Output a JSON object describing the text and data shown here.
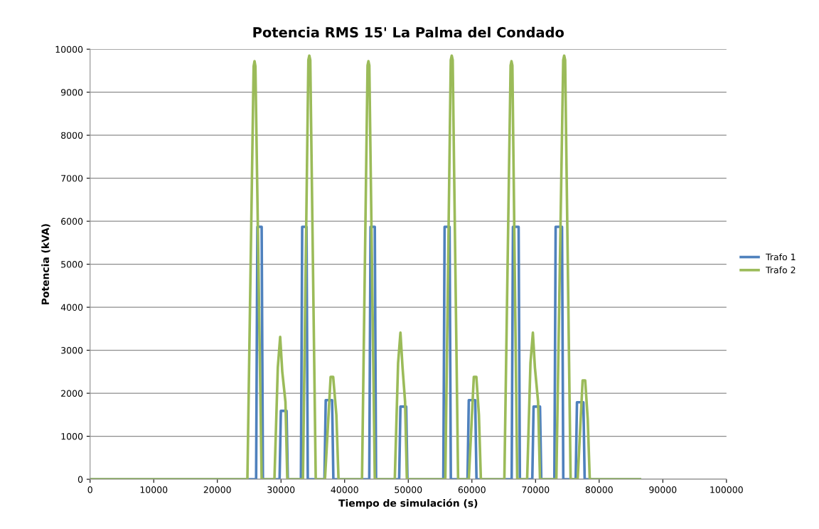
{
  "chart_data": {
    "type": "line",
    "title": "Potencia RMS 15' La Palma del Condado",
    "xlabel": "Tiempo de simulación (s)",
    "ylabel": "Potencia (kVA)",
    "xlim": [
      0,
      100000
    ],
    "xticks": [
      0,
      10000,
      20000,
      30000,
      40000,
      50000,
      60000,
      70000,
      80000,
      90000,
      100000
    ],
    "ylim": [
      0,
      10000
    ],
    "yticks": [
      0,
      1000,
      2000,
      3000,
      4000,
      5000,
      6000,
      7000,
      8000,
      9000,
      10000
    ],
    "grid": "y",
    "legend": "right",
    "marker": "none",
    "line_style": "solid",
    "series": [
      {
        "name": "Trafo 1",
        "color": "#4f81bd",
        "x": [
          0,
          26090,
          26290,
          26960,
          27160,
          29780,
          29980,
          30870,
          31070,
          33130,
          33330,
          34010,
          34210,
          36830,
          37030,
          38030,
          38230,
          43870,
          44070,
          44740,
          44940,
          48570,
          48770,
          49670,
          49870,
          55510,
          55710,
          56490,
          56690,
          59310,
          59510,
          60520,
          60720,
          66250,
          66450,
          67340,
          67540,
          69490,
          69690,
          70700,
          70900,
          72960,
          73160,
          74160,
          74360,
          76310,
          76510,
          77520,
          77720,
          86400
        ],
        "values": [
          0,
          0,
          5870,
          5870,
          0,
          0,
          1590,
          1590,
          0,
          0,
          5870,
          5870,
          0,
          0,
          1840,
          1840,
          0,
          0,
          5870,
          5870,
          0,
          0,
          1690,
          1690,
          0,
          0,
          5870,
          5870,
          0,
          0,
          1840,
          1840,
          0,
          0,
          5870,
          5870,
          0,
          0,
          1690,
          1690,
          0,
          0,
          5870,
          5870,
          0,
          0,
          1790,
          1790,
          0,
          0
        ]
      },
      {
        "name": "Trafo 2",
        "color": "#9bbb59",
        "x": [
          0,
          24720,
          25700,
          25840,
          25980,
          26960,
          28970,
          29500,
          29870,
          30200,
          30700,
          30990,
          33450,
          34300,
          34450,
          34600,
          35460,
          36910,
          37800,
          38200,
          38700,
          39040,
          42730,
          43600,
          43740,
          43880,
          44740,
          47880,
          48400,
          48770,
          49100,
          49500,
          49780,
          55820,
          56680,
          56830,
          56980,
          57830,
          59510,
          60300,
          60700,
          61100,
          61410,
          65100,
          66080,
          66220,
          66360,
          67120,
          68680,
          69200,
          69580,
          69900,
          70400,
          70700,
          73270,
          74350,
          74500,
          74650,
          75510,
          76620,
          77400,
          77800,
          78200,
          78520,
          86400
        ],
        "values": [
          0,
          0,
          9600,
          9720,
          9600,
          0,
          0,
          2600,
          3310,
          2500,
          1800,
          0,
          0,
          9750,
          9850,
          9750,
          0,
          0,
          2380,
          2380,
          1500,
          0,
          0,
          9620,
          9720,
          9620,
          0,
          0,
          2700,
          3410,
          2600,
          1800,
          0,
          0,
          9750,
          9850,
          9750,
          0,
          0,
          2380,
          2380,
          1500,
          0,
          0,
          9620,
          9720,
          9620,
          0,
          0,
          2700,
          3410,
          2600,
          1800,
          0,
          0,
          9750,
          9850,
          9750,
          0,
          0,
          2300,
          2300,
          1400,
          0,
          0
        ]
      }
    ]
  }
}
